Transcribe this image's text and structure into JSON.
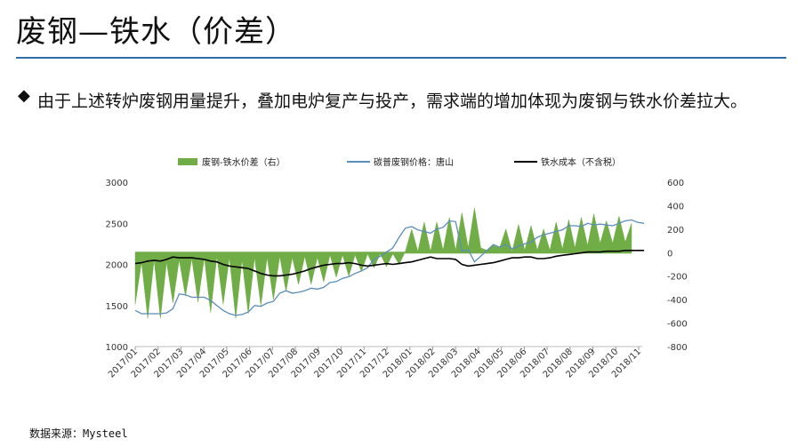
{
  "slide": {
    "title": "废钢—铁水（价差）",
    "bullet": "由于上述转炉废钢用量提升，叠加电炉复产与投产，需求端的增加体现为废钢与铁水价差拉大。",
    "source": "数据来源：Mysteel"
  },
  "colors": {
    "spread": "#70ad47",
    "scrap": "#5b8db8",
    "hotmetal": "#000000",
    "rule": "#2f6ea5"
  },
  "chart_data": {
    "type": "line+area",
    "legend": [
      "废钢-铁水价差（右）",
      "碳普废钢价格：唐山",
      "铁水成本（不含税）"
    ],
    "x_tick_labels": [
      "2017/01",
      "2017/02",
      "2017/03",
      "2017/04",
      "2017/05",
      "2017/06",
      "2017/07",
      "2017/08",
      "2017/09",
      "2017/10",
      "2017/11",
      "2017/12",
      "2018/01",
      "2018/02",
      "2018/03",
      "2018/04",
      "2018/05",
      "2018/06",
      "2018/07",
      "2018/08",
      "2018/09",
      "2018/10",
      "2018/11"
    ],
    "y_left": {
      "ylim": [
        1000,
        3000
      ],
      "ticks": [
        "1000",
        "1500",
        "2000",
        "2500",
        "3000"
      ]
    },
    "y_right": {
      "ylim": [
        -800,
        600
      ],
      "ticks": [
        "-800",
        "-600",
        "-400",
        "-200",
        "0",
        "200",
        "400",
        "600"
      ]
    },
    "series": [
      {
        "name": "废钢-铁水价差（右）",
        "axis": "right",
        "values": [
          -440,
          -80,
          -560,
          -60,
          -560,
          -80,
          -430,
          -60,
          -370,
          -50,
          -420,
          -40,
          -510,
          -30,
          -440,
          -40,
          -560,
          -60,
          -520,
          -40,
          -450,
          -40,
          -400,
          -30,
          -330,
          -40,
          -270,
          -30,
          -270,
          -40,
          -250,
          -20,
          -210,
          -20,
          -200,
          -20,
          -160,
          -10,
          -130,
          -10,
          -120,
          -10,
          -100,
          10,
          200,
          10,
          260,
          10,
          260,
          20,
          300,
          20,
          340,
          40,
          380,
          40,
          20,
          60,
          40,
          200,
          10,
          240,
          20,
          230,
          20,
          200,
          20,
          260,
          30,
          280,
          40,
          300,
          60,
          330,
          80,
          270,
          80,
          310,
          90,
          250
        ]
      },
      {
        "name": "碳普废钢价格：唐山",
        "axis": "left",
        "values": [
          1440,
          1400,
          1400,
          1400,
          1400,
          1410,
          1460,
          1640,
          1630,
          1600,
          1600,
          1600,
          1560,
          1500,
          1440,
          1400,
          1380,
          1390,
          1420,
          1500,
          1490,
          1530,
          1550,
          1650,
          1680,
          1650,
          1660,
          1680,
          1710,
          1700,
          1720,
          1780,
          1790,
          1830,
          1850,
          1890,
          1920,
          1960,
          2060,
          2100,
          2150,
          2200,
          2330,
          2440,
          2460,
          2420,
          2400,
          2380,
          2430,
          2450,
          2530,
          2520,
          2160,
          2180,
          2030,
          2100,
          2170,
          2240,
          2210,
          2240,
          2190,
          2220,
          2250,
          2270,
          2330,
          2360,
          2380,
          2400,
          2420,
          2470,
          2470,
          2460,
          2500,
          2480,
          2490,
          2480,
          2470,
          2500,
          2530,
          2540,
          2510,
          2500
        ]
      },
      {
        "name": "铁水成本（不含税）",
        "axis": "left",
        "values": [
          2010,
          2020,
          2040,
          2050,
          2040,
          2060,
          2090,
          2080,
          2080,
          2080,
          2070,
          2060,
          2040,
          2030,
          2000,
          1980,
          1970,
          1960,
          1950,
          1920,
          1890,
          1870,
          1860,
          1860,
          1870,
          1880,
          1900,
          1920,
          1950,
          1970,
          1990,
          2000,
          2010,
          2010,
          2020,
          2010,
          1990,
          1980,
          1990,
          2000,
          2010,
          2000,
          2010,
          2020,
          2030,
          2050,
          2070,
          2090,
          2070,
          2070,
          2070,
          2060,
          2000,
          1980,
          1990,
          2000,
          2010,
          2020,
          2040,
          2060,
          2080,
          2080,
          2090,
          2090,
          2070,
          2070,
          2080,
          2100,
          2110,
          2120,
          2130,
          2140,
          2150,
          2150,
          2150,
          2160,
          2160,
          2160,
          2170,
          2170,
          2170,
          2170
        ]
      }
    ]
  }
}
